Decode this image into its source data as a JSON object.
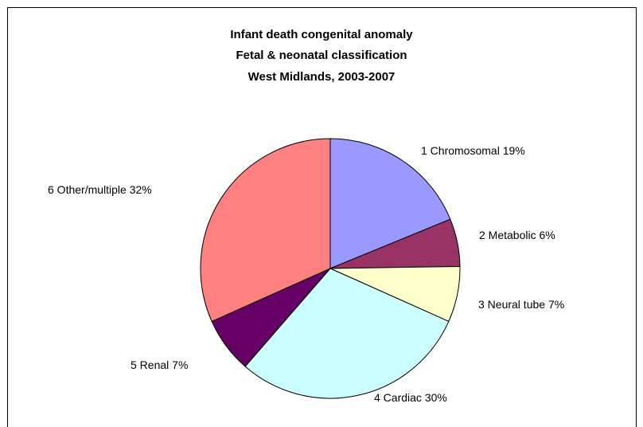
{
  "chart_data": {
    "type": "pie",
    "title": [
      "Infant death congenital anomaly",
      "Fetal & neonatal classification",
      "West Midlands, 2003-2007"
    ],
    "categories": [
      "1 Chromosomal",
      "2 Metabolic",
      "3 Neural tube",
      "4 Cardiac",
      "5 Renal",
      "6 Other/multiple"
    ],
    "values": [
      19,
      6,
      7,
      30,
      7,
      32
    ],
    "value_labels": [
      "19%",
      "6%",
      "7%",
      "30%",
      "7%",
      "32%"
    ],
    "colors": [
      "#9999ff",
      "#993366",
      "#ffffcc",
      "#ccffff",
      "#660066",
      "#ff8080"
    ]
  }
}
